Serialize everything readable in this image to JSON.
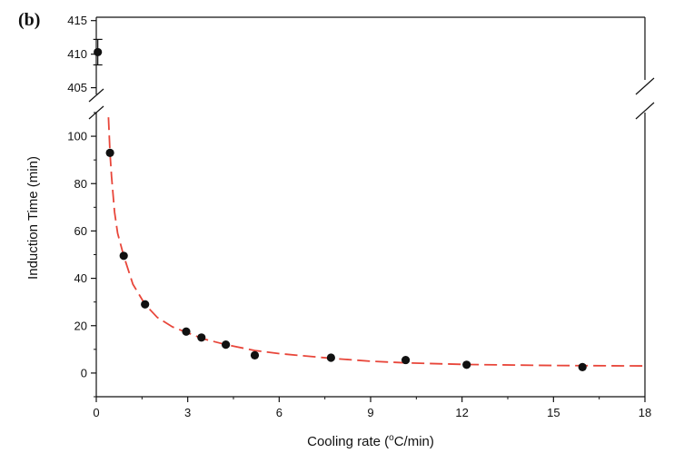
{
  "chart_data": {
    "type": "scatter",
    "panel_label": "(b)",
    "xlabel_prefix": "Cooling rate (",
    "xlabel_sup": "o",
    "xlabel_suffix": "C/min)",
    "ylabel": "Induction Time (min)",
    "x_ticks": [
      "0",
      "3",
      "6",
      "9",
      "12",
      "15",
      "18"
    ],
    "xlim": [
      0,
      18
    ],
    "y_ticks_lower": [
      "0",
      "20",
      "40",
      "60",
      "80",
      "100"
    ],
    "ylim_lower": [
      -10,
      110
    ],
    "y_ticks_upper": [
      "405",
      "410",
      "415"
    ],
    "ylim_upper": [
      404,
      415.5
    ],
    "axis_break": true,
    "grid": false,
    "series": [
      {
        "points": [
          {
            "x": 0.05,
            "y": 410.3,
            "err": 1.9
          },
          {
            "x": 0.45,
            "y": 93
          },
          {
            "x": 0.9,
            "y": 49.5
          },
          {
            "x": 1.6,
            "y": 29
          },
          {
            "x": 2.95,
            "y": 17.5
          },
          {
            "x": 3.45,
            "y": 15
          },
          {
            "x": 4.25,
            "y": 12
          },
          {
            "x": 5.2,
            "y": 7.5
          },
          {
            "x": 7.7,
            "y": 6.5
          },
          {
            "x": 10.15,
            "y": 5.5
          },
          {
            "x": 12.15,
            "y": 3.5
          },
          {
            "x": 15.95,
            "y": 2.5
          }
        ],
        "marker_color": "#111111"
      }
    ],
    "fit_curve": {
      "style": "dashed",
      "color": "#e8463a",
      "x": [
        0.4,
        0.45,
        0.5,
        0.6,
        0.7,
        0.9,
        1.2,
        1.6,
        2.0,
        2.5,
        3.0,
        3.5,
        4.25,
        5.2,
        6.0,
        7.7,
        9.0,
        10.15,
        12.15,
        15.0,
        18.0
      ],
      "y": [
        108,
        93,
        83,
        68,
        59,
        49.5,
        37.5,
        29,
        23.5,
        19.5,
        17,
        14.5,
        12,
        9.5,
        8.2,
        6.2,
        5.0,
        4.3,
        3.6,
        3.2,
        3.0
      ]
    }
  }
}
